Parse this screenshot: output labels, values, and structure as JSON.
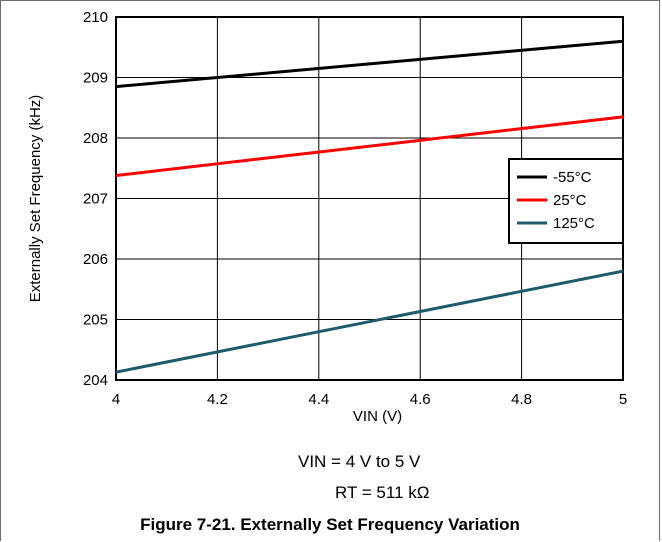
{
  "chart_data": {
    "type": "line",
    "xlabel": "VIN (V)",
    "ylabel": "Externally Set Frequency (kHz)",
    "xlim": [
      4,
      5
    ],
    "ylim": [
      204,
      210
    ],
    "xticks": [
      4,
      4.2,
      4.4,
      4.6,
      4.8,
      5
    ],
    "xtick_labels": [
      "4",
      "4.2",
      "4.4",
      "4.6",
      "4.8",
      "5"
    ],
    "yticks": [
      204,
      205,
      206,
      207,
      208,
      209,
      210
    ],
    "ytick_labels": [
      "204",
      "205",
      "206",
      "207",
      "208",
      "209",
      "210"
    ],
    "grid": true,
    "legend_position": "right",
    "series": [
      {
        "name": "-55°C",
        "color": "#000000",
        "x": [
          4,
          5
        ],
        "y": [
          208.85,
          209.6
        ]
      },
      {
        "name": "25°C",
        "color": "#ff0000",
        "x": [
          4,
          5
        ],
        "y": [
          207.38,
          208.35
        ]
      },
      {
        "name": "125°C",
        "color": "#1f5c6b",
        "x": [
          4,
          5
        ],
        "y": [
          204.13,
          205.8
        ]
      }
    ]
  },
  "notes": {
    "vin_range": "VIN = 4 V to 5 V",
    "rt_value": "RT = 511 kΩ"
  },
  "caption": "Figure 7-21. Externally Set Frequency Variation"
}
